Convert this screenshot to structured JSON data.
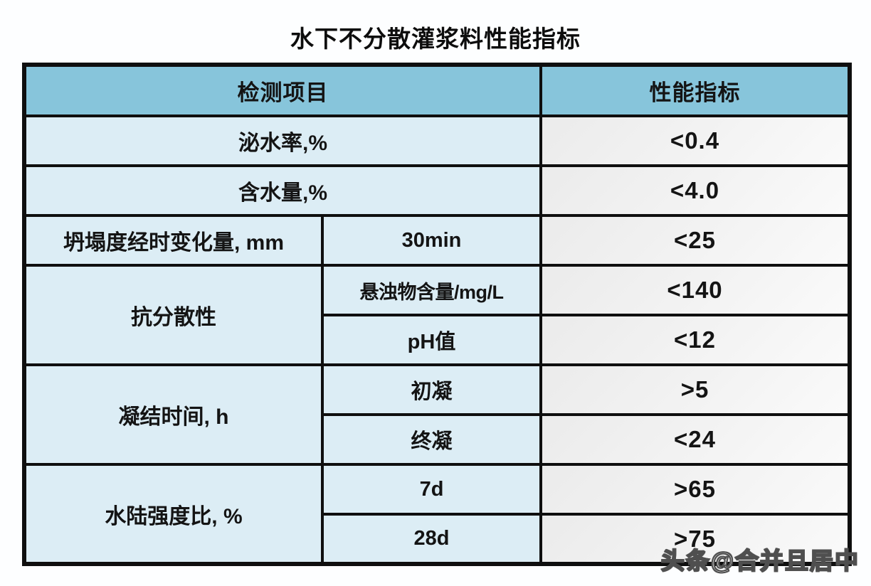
{
  "title": "水下不分散灌浆料性能指标",
  "watermark": "头条@合并且居中",
  "colors": {
    "header_bg": "#87c5db",
    "item_bg": "#dcedf5",
    "value_bg": "#efefef",
    "border": "#0f0f0f",
    "page_bg": "#fdfeff"
  },
  "chart_data": {
    "type": "table",
    "title": "水下不分散灌浆料性能指标",
    "columns": [
      "检测项目",
      "性能指标"
    ],
    "rows": [
      [
        "泌水率,%",
        "",
        "<0.4"
      ],
      [
        "含水量,%",
        "",
        "<4.0"
      ],
      [
        "坍塌度经时变化量, mm",
        "30min",
        "<25"
      ],
      [
        "抗分散性",
        "悬浊物含量/mg/L",
        "<140"
      ],
      [
        "抗分散性",
        "pH值",
        "<12"
      ],
      [
        "凝结时间, h",
        "初凝",
        ">5"
      ],
      [
        "凝结时间, h",
        "终凝",
        "<24"
      ],
      [
        "水陆强度比, %",
        "7d",
        ">65"
      ],
      [
        "水陆强度比, %",
        "28d",
        ">75"
      ]
    ]
  }
}
